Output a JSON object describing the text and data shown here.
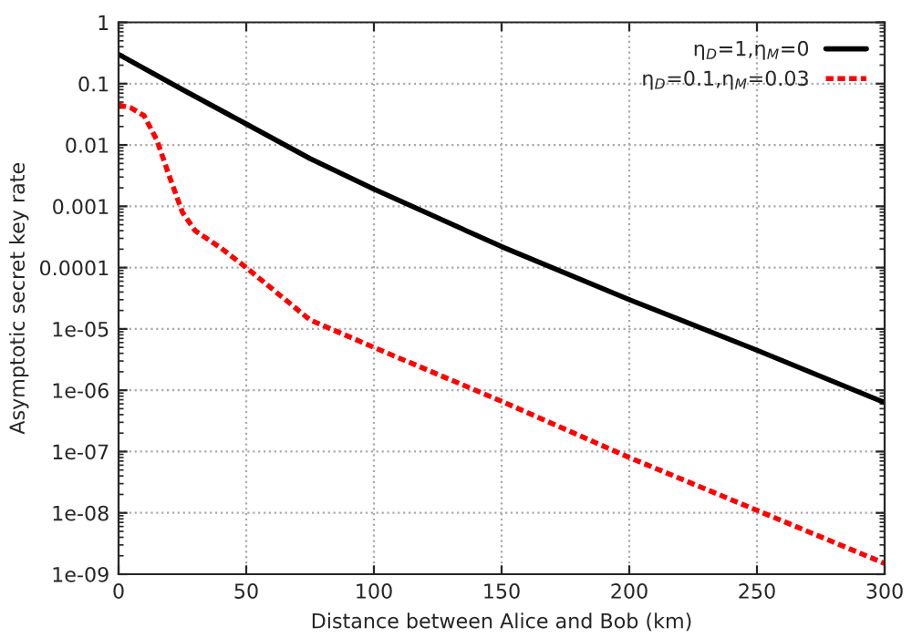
{
  "chart_data": {
    "type": "line",
    "xlabel": "Distance between Alice and Bob (km)",
    "ylabel": "Asymptotic secret key rate",
    "log": "y",
    "grid": true,
    "legend": "top right",
    "xlim": [
      0,
      300
    ],
    "xticks": [
      0,
      50,
      100,
      150,
      200,
      250,
      300
    ],
    "ylim": [
      1e-09,
      1
    ],
    "yticks": [
      {
        "value": 1e-09,
        "label": "1e-09"
      },
      {
        "value": 1e-08,
        "label": "1e-08"
      },
      {
        "value": 1e-07,
        "label": "1e-07"
      },
      {
        "value": 1e-06,
        "label": "1e-06"
      },
      {
        "value": 1e-05,
        "label": "1e-05"
      },
      {
        "value": 0.0001,
        "label": "0.0001"
      },
      {
        "value": 0.001,
        "label": "0.001"
      },
      {
        "value": 0.01,
        "label": "0.01"
      },
      {
        "value": 0.1,
        "label": "0.1"
      },
      {
        "value": 1,
        "label": "1"
      }
    ],
    "series": [
      {
        "name": "η$_{D}$=1,η$_{M}$=0",
        "color": "#000000",
        "line_style": "solid",
        "x": [
          0,
          25,
          50,
          75,
          100,
          150,
          200,
          250,
          300
        ],
        "values": [
          0.3,
          0.08,
          0.022,
          0.006,
          0.0019,
          0.00022,
          3e-05,
          4.5e-06,
          6.3e-07
        ]
      },
      {
        "name": "η$_{D}$=0.1,η$_{M}$=0.03",
        "color": "#ff0000",
        "line_style": "dotted",
        "x": [
          0,
          5,
          10,
          15,
          20,
          25,
          30,
          40,
          50,
          75,
          100,
          150,
          200,
          250,
          300
        ],
        "values": [
          0.045,
          0.04,
          0.03,
          0.012,
          0.003,
          0.0008,
          0.0004,
          0.00021,
          0.0001,
          1.4e-05,
          5e-06,
          6.6e-07,
          8e-08,
          1.1e-08,
          1.5e-09
        ]
      }
    ]
  }
}
